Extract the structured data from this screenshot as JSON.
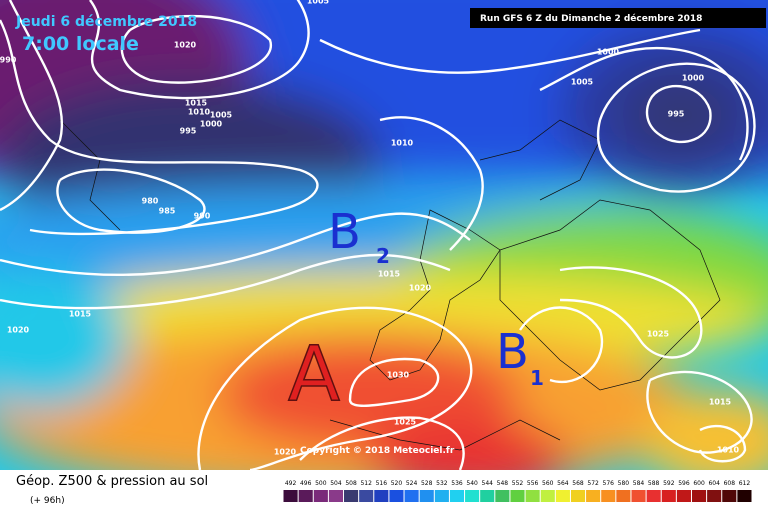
{
  "header": {
    "date": "Jeudi 6 décembre 2018",
    "time": "7:00 locale",
    "run": "Run GFS 6 Z du Dimanche 2 décembre 2018"
  },
  "isobars": {
    "labels": [
      1005,
      1020,
      990,
      1015,
      1010,
      1005,
      1000,
      995,
      980,
      985,
      990,
      1010,
      1000,
      1005,
      1000,
      995,
      1015,
      1020,
      1020,
      1015,
      1025,
      1030,
      1025,
      1015,
      1020,
      1010
    ]
  },
  "systems": [
    {
      "label": "A"
    },
    {
      "label": "B",
      "index": 2
    },
    {
      "label": "B",
      "index": 1
    }
  ],
  "copyright": "Copyright © 2018 Meteociel.fr",
  "legend": {
    "title": "Géop. Z500 & pression au sol",
    "lead": "(+ 96h)",
    "scale": {
      "values": [
        492,
        496,
        500,
        504,
        508,
        512,
        516,
        520,
        524,
        528,
        532,
        536,
        540,
        544,
        548,
        552,
        556,
        560,
        564,
        568,
        572,
        576,
        580,
        584,
        588,
        592,
        596,
        600,
        604,
        608,
        612
      ],
      "colors": [
        "#3c0c3c",
        "#5a1a5a",
        "#7a2a7a",
        "#8a3a8a",
        "#3a3a70",
        "#3a4aa0",
        "#2040c0",
        "#1a50e0",
        "#2070f0",
        "#2090f0",
        "#20b0f0",
        "#20d0f0",
        "#20e0d0",
        "#20d0a0",
        "#40c060",
        "#60d040",
        "#90e040",
        "#c0f040",
        "#f0f030",
        "#f0d020",
        "#f8b020",
        "#f89020",
        "#f07020",
        "#f05030",
        "#e83030",
        "#d82020",
        "#c01818",
        "#a01010",
        "#801010",
        "#500808",
        "#200000"
      ]
    }
  }
}
